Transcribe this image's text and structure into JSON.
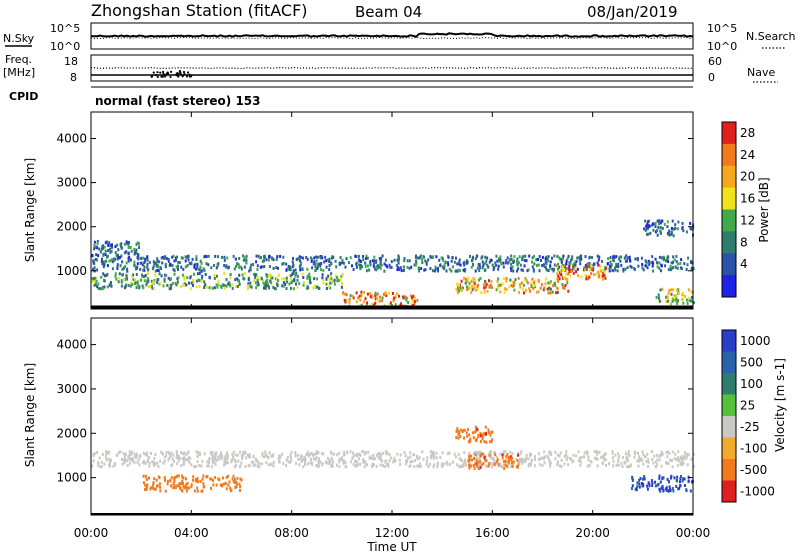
{
  "header": {
    "title": "Zhongshan Station (fitACF)",
    "beam": "Beam 04",
    "date": "08/Jan/2019"
  },
  "noise_panel": {
    "left_label": "N.Sky",
    "right_label": "N.Search",
    "left_ticks": [
      "10^5",
      "10^0"
    ],
    "right_ticks": [
      "10^5",
      "10^0"
    ]
  },
  "freq_panel": {
    "left_label_line1": "Freq.",
    "left_label_line2": "[MHz]",
    "right_label": "Nave",
    "left_ticks": [
      "18",
      "8"
    ],
    "right_ticks": [
      "60",
      "0"
    ]
  },
  "cpid": {
    "label": "CPID",
    "text": "normal (fast stereo) 153"
  },
  "x_axis": {
    "label": "Time UT",
    "tick_labels": [
      "00:00",
      "04:00",
      "08:00",
      "12:00",
      "16:00",
      "20:00",
      "00:00"
    ]
  },
  "colors": {
    "power_scale": [
      "#1e22e6",
      "#2a52a8",
      "#2e7d6e",
      "#3faa4a",
      "#f2e21a",
      "#f5a81c",
      "#f07a1c",
      "#e01f1f"
    ],
    "velocity_scale": [
      "#2a3fc7",
      "#2a62a8",
      "#2e7d6e",
      "#55c03a",
      "#c8c8c4",
      "#f2aa2a",
      "#f07a1c",
      "#e01f1f"
    ]
  },
  "chart_data": [
    {
      "type": "heatmap",
      "title": "",
      "xlabel": "",
      "ylabel": "Slant Range [km]",
      "xlim": [
        0,
        24
      ],
      "ylim": [
        180,
        4600
      ],
      "y_ticks": [
        1000,
        2000,
        3000,
        4000
      ],
      "colorbar": {
        "label": "Power [dB]",
        "ticks": [
          "28",
          "24",
          "20",
          "16",
          "12",
          "8",
          "4"
        ],
        "range": [
          0,
          30
        ]
      },
      "features": [
        {
          "t_start": 0,
          "t_end": 2,
          "range_km": 1550,
          "value": 8
        },
        {
          "t_start": 0,
          "t_end": 24,
          "range_km": 1200,
          "value": 8
        },
        {
          "t_start": 0,
          "t_end": 10,
          "range_km": 800,
          "value": 12
        },
        {
          "t_start": 10,
          "t_end": 13,
          "range_km": 380,
          "value": 24
        },
        {
          "t_start": 14.5,
          "t_end": 19,
          "range_km": 700,
          "value": 20
        },
        {
          "t_start": 18.5,
          "t_end": 20.5,
          "range_km": 1000,
          "value": 24
        },
        {
          "t_start": 22,
          "t_end": 24,
          "range_km": 2000,
          "value": 8
        },
        {
          "t_start": 22.5,
          "t_end": 24,
          "range_km": 450,
          "value": 16
        }
      ]
    },
    {
      "type": "heatmap",
      "title": "",
      "xlabel": "Time UT",
      "ylabel": "Slant Range [km]",
      "xlim": [
        0,
        24
      ],
      "ylim": [
        180,
        4600
      ],
      "y_ticks": [
        1000,
        2000,
        3000,
        4000
      ],
      "colorbar": {
        "label": "Velocity [m s-1]",
        "ticks": [
          "1000",
          "500",
          "100",
          "25",
          "-25",
          "-100",
          "-500",
          "-1000"
        ],
        "range": [
          -1000,
          1000
        ]
      },
      "features": [
        {
          "t_start": 0,
          "t_end": 24,
          "range_km": 1450,
          "value": 0
        },
        {
          "t_start": 2,
          "t_end": 6,
          "range_km": 900,
          "value": -300
        },
        {
          "t_start": 15,
          "t_end": 17,
          "range_km": 1400,
          "value": -400
        },
        {
          "t_start": 14.5,
          "t_end": 16,
          "range_km": 2000,
          "value": -400
        },
        {
          "t_start": 21.5,
          "t_end": 24,
          "range_km": 900,
          "value": 600
        }
      ]
    }
  ]
}
